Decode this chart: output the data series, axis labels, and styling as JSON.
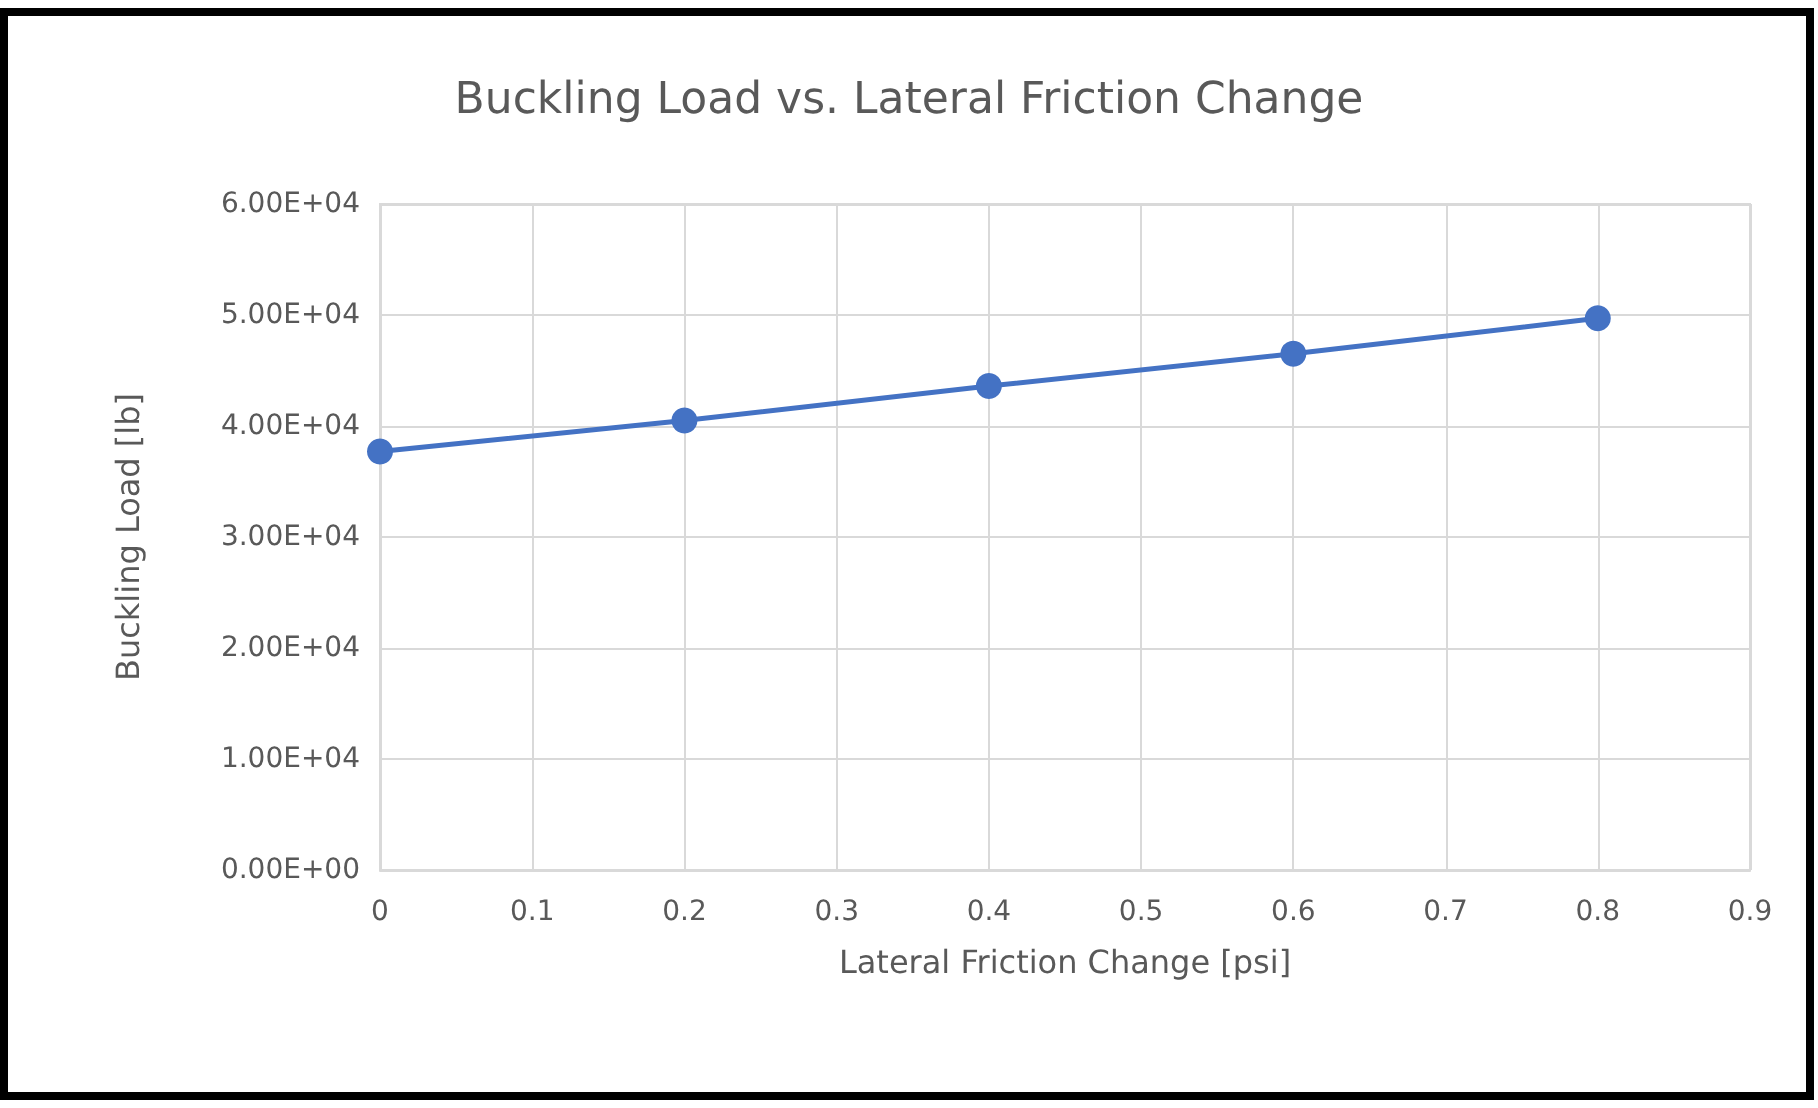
{
  "chart_data": {
    "type": "line",
    "title": "Buckling Load vs. Lateral Friction Change",
    "xlabel": "Lateral Friction Change [psi]",
    "ylabel": "Buckling Load [lb]",
    "x": [
      0,
      0.2,
      0.4,
      0.6,
      0.8
    ],
    "series": [
      {
        "color": "#4472c4",
        "values": [
          37700,
          40500,
          43600,
          46500,
          49700
        ]
      }
    ],
    "xlim": [
      0,
      0.9
    ],
    "xticks": [
      0,
      0.1,
      0.2,
      0.3,
      0.4,
      0.5,
      0.6,
      0.7,
      0.8,
      0.9
    ],
    "ylim": [
      0,
      60000
    ],
    "yticks": [
      {
        "value": 0,
        "label": "0.00E+00"
      },
      {
        "value": 10000,
        "label": "1.00E+04"
      },
      {
        "value": 20000,
        "label": "2.00E+04"
      },
      {
        "value": 30000,
        "label": "3.00E+04"
      },
      {
        "value": 40000,
        "label": "4.00E+04"
      },
      {
        "value": 50000,
        "label": "5.00E+04"
      },
      {
        "value": 60000,
        "label": "6.00E+04"
      }
    ],
    "grid": true,
    "marker": "circle",
    "line_style": "solid"
  }
}
